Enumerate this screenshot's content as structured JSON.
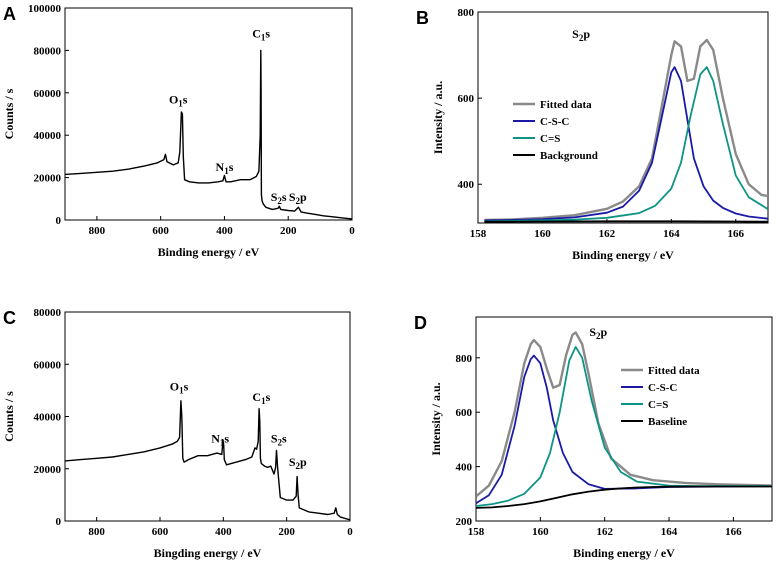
{
  "colors": {
    "survey": "#000000",
    "fitted": "#8a8a8a",
    "csc": "#1a1aa6",
    "cs": "#0f9484",
    "background": "#000000"
  },
  "chart_data": [
    {
      "panel": "A",
      "type": "line",
      "title": "",
      "xlabel": "Binding energy / eV",
      "ylabel": "Counts / s",
      "xlim": [
        900,
        0
      ],
      "ylim": [
        0,
        100000
      ],
      "xticks": [
        800,
        600,
        400,
        200,
        0
      ],
      "yticks": [
        0,
        20000,
        40000,
        60000,
        80000,
        100000
      ],
      "annotations": [
        {
          "text": "C1s",
          "x": 285,
          "y": 86000
        },
        {
          "text": "O1s",
          "x": 545,
          "y": 55000
        },
        {
          "text": "N1s",
          "x": 400,
          "y": 23000
        },
        {
          "text": "S2s",
          "x": 230,
          "y": 9000
        },
        {
          "text": "S2p",
          "x": 170,
          "y": 9000
        }
      ],
      "series": [
        {
          "name": "survey",
          "color_key": "survey",
          "x": [
            900,
            850,
            800,
            750,
            700,
            650,
            610,
            590,
            585,
            580,
            560,
            545,
            540,
            535,
            532,
            529,
            525,
            510,
            480,
            450,
            420,
            405,
            400,
            395,
            380,
            350,
            320,
            300,
            292,
            288,
            286,
            285,
            284,
            282,
            278,
            270,
            250,
            232,
            228,
            224,
            200,
            180,
            168,
            164,
            160,
            140,
            110,
            90,
            60,
            30,
            0
          ],
          "y": [
            21500,
            22000,
            22500,
            23000,
            24000,
            25500,
            27000,
            28500,
            31000,
            27500,
            26000,
            27000,
            32000,
            51000,
            50000,
            30000,
            19000,
            18000,
            17500,
            17500,
            18000,
            18500,
            21000,
            18000,
            18000,
            19000,
            19000,
            20500,
            23000,
            40000,
            80000,
            60000,
            12000,
            9000,
            7500,
            6000,
            5000,
            5500,
            6500,
            5000,
            4500,
            4200,
            6000,
            5000,
            3800,
            3200,
            2500,
            2000,
            1500,
            1000,
            500
          ]
        }
      ]
    },
    {
      "panel": "B",
      "type": "line",
      "title": "",
      "xlabel": "Binding energy / eV",
      "ylabel": "Intensity / a.u.",
      "xlim": [
        158,
        167
      ],
      "ylim": [
        310,
        800
      ],
      "xticks": [
        158,
        160,
        162,
        164,
        166
      ],
      "yticks": [
        400,
        600,
        800
      ],
      "annotations": [
        {
          "text": "S2p",
          "x": 161.2,
          "y": 740
        }
      ],
      "legend": [
        "Fitted data",
        "C-S-C",
        "C=S",
        "Background"
      ],
      "legend_position": "middle-left",
      "series": [
        {
          "name": "Fitted data",
          "color_key": "fitted",
          "x": [
            158.2,
            159,
            160,
            161,
            162,
            162.5,
            163,
            163.4,
            163.7,
            164,
            164.1,
            164.3,
            164.5,
            164.7,
            164.9,
            165.1,
            165.3,
            165.6,
            166,
            166.4,
            166.8,
            167
          ],
          "y": [
            317,
            318,
            322,
            328,
            343,
            360,
            395,
            460,
            580,
            700,
            732,
            720,
            640,
            645,
            720,
            735,
            712,
            600,
            470,
            400,
            375,
            373
          ]
        },
        {
          "name": "C-S-C",
          "color_key": "csc",
          "x": [
            158.2,
            159,
            160,
            161,
            162,
            162.5,
            163,
            163.4,
            163.7,
            164,
            164.1,
            164.3,
            164.5,
            164.7,
            165,
            165.3,
            165.6,
            166,
            166.4,
            167
          ],
          "y": [
            316,
            317,
            319,
            323,
            334,
            348,
            385,
            450,
            555,
            660,
            672,
            640,
            550,
            460,
            395,
            362,
            345,
            332,
            325,
            320
          ]
        },
        {
          "name": "C=S",
          "color_key": "cs",
          "x": [
            158.2,
            160,
            161,
            162,
            163,
            163.5,
            164,
            164.3,
            164.6,
            164.9,
            165.1,
            165.3,
            165.6,
            166,
            166.4,
            167
          ],
          "y": [
            314,
            316,
            318,
            322,
            333,
            350,
            390,
            450,
            560,
            655,
            672,
            640,
            540,
            420,
            370,
            342
          ]
        },
        {
          "name": "Background",
          "color_key": "background",
          "x": [
            158.2,
            160,
            162,
            164,
            166,
            167
          ],
          "y": [
            313,
            313.5,
            314,
            314,
            313.5,
            313
          ]
        }
      ]
    },
    {
      "panel": "C",
      "type": "line",
      "title": "",
      "xlabel": "Bingding energy / eV",
      "ylabel": "Counts / s",
      "xlim": [
        900,
        0
      ],
      "ylim": [
        0,
        80000
      ],
      "xticks": [
        800,
        600,
        400,
        200,
        0
      ],
      "yticks": [
        0,
        20000,
        40000,
        60000,
        80000
      ],
      "annotations": [
        {
          "text": "O1s",
          "x": 540,
          "y": 50000
        },
        {
          "text": "C1s",
          "x": 280,
          "y": 46000
        },
        {
          "text": "N1s",
          "x": 410,
          "y": 30000
        },
        {
          "text": "S2s",
          "x": 225,
          "y": 30000
        },
        {
          "text": "S2p",
          "x": 165,
          "y": 21000
        }
      ],
      "series": [
        {
          "name": "survey",
          "color_key": "survey",
          "x": [
            900,
            850,
            800,
            750,
            700,
            650,
            600,
            560,
            545,
            538,
            534,
            531,
            528,
            524,
            510,
            480,
            450,
            420,
            405,
            401,
            399,
            397,
            390,
            360,
            330,
            310,
            300,
            295,
            290,
            287,
            285,
            283,
            280,
            270,
            260,
            250,
            240,
            235,
            232,
            229,
            226,
            220,
            200,
            180,
            170,
            167,
            164,
            160,
            130,
            100,
            70,
            50,
            45,
            40,
            30,
            10,
            0
          ],
          "y": [
            23000,
            23500,
            24000,
            24500,
            25500,
            26500,
            28000,
            29500,
            30500,
            32000,
            46000,
            40000,
            24000,
            22500,
            23500,
            25000,
            25000,
            26000,
            25500,
            31000,
            29000,
            23500,
            21500,
            22500,
            23500,
            24500,
            28000,
            27500,
            30500,
            43000,
            38000,
            24000,
            22000,
            21000,
            20500,
            21000,
            18000,
            20500,
            27000,
            21000,
            17000,
            9000,
            8000,
            8000,
            9500,
            17000,
            10000,
            5000,
            3500,
            3000,
            2500,
            3000,
            5000,
            2500,
            1500,
            800,
            500
          ]
        }
      ]
    },
    {
      "panel": "D",
      "type": "line",
      "title": "",
      "xlabel": "Binding energy / eV",
      "ylabel": "Intensity / a.u.",
      "xlim": [
        158,
        167.2
      ],
      "ylim": [
        200,
        950
      ],
      "xticks": [
        158,
        160,
        162,
        164,
        166
      ],
      "yticks": [
        200,
        400,
        600,
        800
      ],
      "annotations": [
        {
          "text": "S2p",
          "x": 161.8,
          "y": 880
        }
      ],
      "legend": [
        "Fitted data",
        "C-S-C",
        "C=S",
        "Baseline"
      ],
      "legend_position": "middle-right",
      "series": [
        {
          "name": "Fitted data",
          "color_key": "fitted",
          "x": [
            158,
            158.4,
            158.8,
            159.2,
            159.5,
            159.7,
            159.8,
            160,
            160.2,
            160.4,
            160.6,
            160.8,
            161,
            161.1,
            161.3,
            161.5,
            161.8,
            162.2,
            162.8,
            163.5,
            164.5,
            165.5,
            167.2
          ],
          "y": [
            290,
            330,
            420,
            600,
            780,
            850,
            865,
            840,
            760,
            690,
            700,
            810,
            885,
            893,
            850,
            740,
            560,
            430,
            370,
            350,
            340,
            335,
            330
          ]
        },
        {
          "name": "C-S-C",
          "color_key": "csc",
          "x": [
            158,
            158.4,
            158.8,
            159.2,
            159.5,
            159.7,
            159.8,
            160,
            160.2,
            160.4,
            160.7,
            161,
            161.5,
            162,
            163,
            164,
            165,
            167.2
          ],
          "y": [
            265,
            295,
            370,
            550,
            730,
            795,
            808,
            780,
            690,
            570,
            450,
            380,
            335,
            318,
            320,
            325,
            326,
            328
          ]
        },
        {
          "name": "C=S",
          "color_key": "cs",
          "x": [
            158,
            158.5,
            159,
            159.5,
            160,
            160.3,
            160.6,
            160.9,
            161.1,
            161.3,
            161.6,
            162,
            162.5,
            163,
            164,
            165,
            167.2
          ],
          "y": [
            255,
            262,
            275,
            300,
            360,
            450,
            600,
            790,
            840,
            800,
            640,
            470,
            380,
            345,
            330,
            328,
            328
          ]
        },
        {
          "name": "Baseline",
          "color_key": "background",
          "x": [
            158,
            158.5,
            159,
            159.5,
            160,
            160.5,
            161,
            161.5,
            162,
            162.5,
            163,
            163.5,
            164,
            165,
            166,
            167.2
          ],
          "y": [
            248,
            250,
            255,
            262,
            272,
            285,
            298,
            308,
            315,
            320,
            323,
            325,
            326,
            327,
            327,
            327
          ]
        }
      ]
    }
  ]
}
